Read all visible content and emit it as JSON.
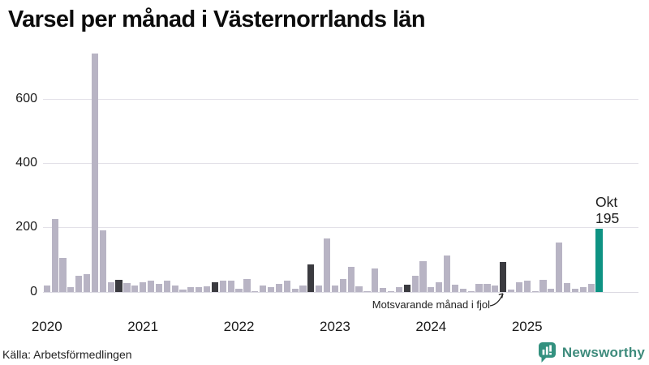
{
  "title": "Varsel per månad i Västernorrlands län",
  "source": "Källa: Arbetsförmedlingen",
  "branding": {
    "name": "Newsworthy"
  },
  "annotation": {
    "text": "Motsvarande månad i fjol"
  },
  "current_point_label": {
    "month": "Okt",
    "value": "195"
  },
  "y_axis": {
    "ticks": [
      "0",
      "200",
      "400",
      "600"
    ]
  },
  "x_axis": {
    "years": [
      "2020",
      "2021",
      "2022",
      "2023",
      "2024",
      "2025"
    ]
  },
  "colors": {
    "bar_light": "#b8b4c4",
    "bar_dark": "#3b3b40",
    "bar_current": "#0e9383",
    "gridline": "#e3e1e8",
    "brand_teal": "#3e8b7c",
    "text": "#1a1a1a"
  },
  "chart_data": {
    "type": "bar",
    "title": "Varsel per månad i Västernorrlands län",
    "xlabel": "",
    "ylabel": "",
    "ylim": [
      0,
      760
    ],
    "grid": "horizontal",
    "x": [
      "2020-jan",
      "2020-feb",
      "2020-mar",
      "2020-apr",
      "2020-maj",
      "2020-jun",
      "2020-jul",
      "2020-aug",
      "2020-sep",
      "2020-okt",
      "2020-nov",
      "2020-dec",
      "2021-jan",
      "2021-feb",
      "2021-mar",
      "2021-apr",
      "2021-maj",
      "2021-jun",
      "2021-jul",
      "2021-aug",
      "2021-sep",
      "2021-okt",
      "2021-nov",
      "2021-dec",
      "2022-jan",
      "2022-feb",
      "2022-mar",
      "2022-apr",
      "2022-maj",
      "2022-jun",
      "2022-jul",
      "2022-aug",
      "2022-sep",
      "2022-okt",
      "2022-nov",
      "2022-dec",
      "2023-jan",
      "2023-feb",
      "2023-mar",
      "2023-apr",
      "2023-maj",
      "2023-jun",
      "2023-jul",
      "2023-aug",
      "2023-sep",
      "2023-okt",
      "2023-nov",
      "2023-dec",
      "2024-jan",
      "2024-feb",
      "2024-mar",
      "2024-apr",
      "2024-maj",
      "2024-jun",
      "2024-jul",
      "2024-aug",
      "2024-sep",
      "2024-okt",
      "2024-nov",
      "2024-dec",
      "2025-jan",
      "2025-feb",
      "2025-mar",
      "2025-apr",
      "2025-maj",
      "2025-jun",
      "2025-jul",
      "2025-aug",
      "2025-sep",
      "2025-okt"
    ],
    "values": [
      20,
      225,
      105,
      14,
      48,
      55,
      740,
      190,
      30,
      37,
      27,
      19,
      30,
      35,
      25,
      34,
      19,
      7,
      14,
      14,
      17,
      28,
      34,
      34,
      9,
      39,
      2,
      20,
      13,
      24,
      35,
      8,
      18,
      85,
      18,
      165,
      20,
      38,
      76,
      17,
      2,
      72,
      11,
      2,
      14,
      21,
      49,
      95,
      15,
      30,
      112,
      21,
      10,
      2,
      25,
      23,
      19,
      93,
      7,
      30,
      34,
      2,
      36,
      8,
      153,
      26,
      10,
      15,
      24,
      195
    ],
    "same_month_dark_indices": [
      9,
      21,
      33,
      45,
      57
    ],
    "current_index": 69,
    "current_annotation": "Okt 195",
    "note": "Motsvarande månad i fjol"
  }
}
